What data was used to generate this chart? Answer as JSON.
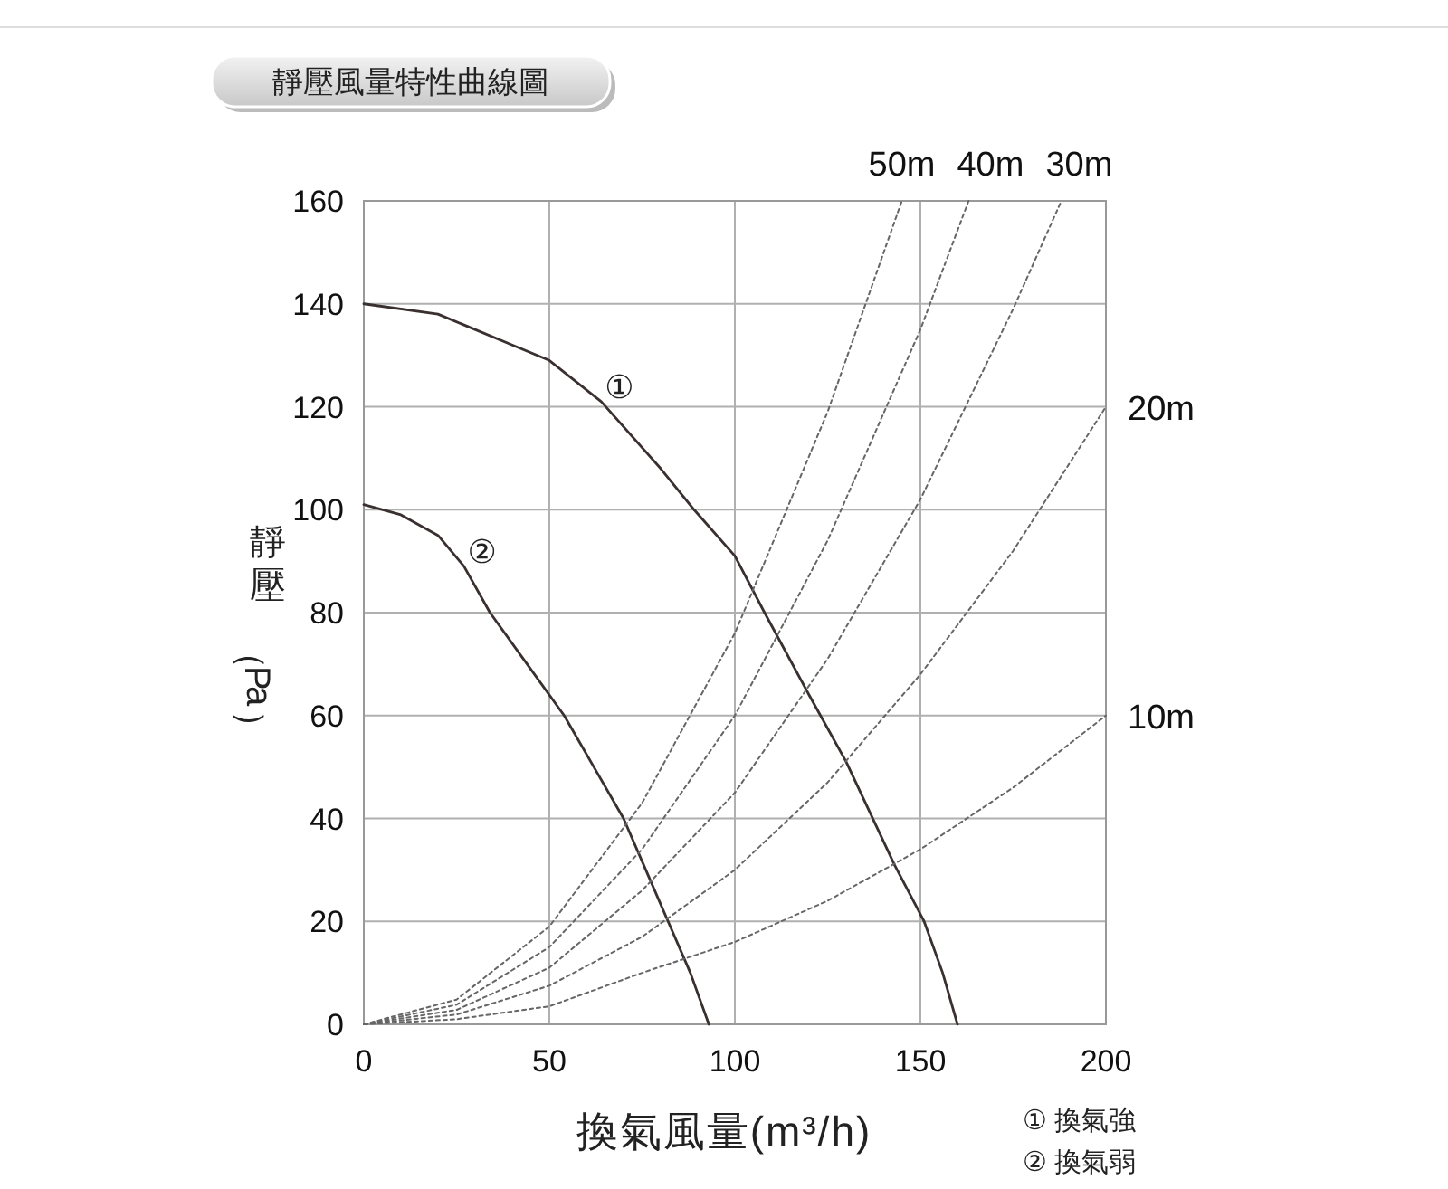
{
  "chart_data": {
    "type": "line",
    "title": "靜壓風量特性曲線圖",
    "xlabel": "換氣風量(m³/h)",
    "ylabel": "靜壓（Pa）",
    "xlim": [
      0,
      200
    ],
    "ylim": [
      0,
      160
    ],
    "xticks": [
      0,
      50,
      100,
      150,
      200
    ],
    "yticks": [
      0,
      20,
      40,
      60,
      80,
      100,
      120,
      140,
      160
    ],
    "grid": true,
    "series": [
      {
        "name": "①",
        "color": "#3a3030",
        "line_style": "solid",
        "x": [
          0,
          20,
          40,
          50,
          64,
          80,
          89,
          100,
          108,
          120,
          130,
          143,
          151,
          156,
          160
        ],
        "values": [
          140,
          138,
          132,
          129,
          121,
          108,
          100,
          91,
          80,
          64,
          51,
          31,
          20,
          10,
          0
        ]
      },
      {
        "name": "②",
        "color": "#3a3030",
        "line_style": "solid",
        "x": [
          0,
          10,
          20,
          27,
          34,
          44,
          54,
          62,
          70,
          76,
          82,
          88,
          93
        ],
        "values": [
          101,
          99,
          95,
          89,
          80,
          70,
          60,
          50,
          40,
          30,
          20,
          10,
          0
        ]
      },
      {
        "name": "50m",
        "color": "#666666",
        "line_style": "dotted",
        "x": [
          0,
          25,
          50,
          75,
          100,
          125,
          145
        ],
        "values": [
          0,
          4.8,
          19,
          43,
          76,
          119,
          160
        ]
      },
      {
        "name": "40m",
        "color": "#666666",
        "line_style": "dotted",
        "x": [
          0,
          25,
          50,
          75,
          100,
          125,
          150,
          163
        ],
        "values": [
          0,
          3.8,
          15,
          34,
          60,
          94,
          135,
          160
        ]
      },
      {
        "name": "30m",
        "color": "#666666",
        "line_style": "dotted",
        "x": [
          0,
          25,
          50,
          75,
          100,
          125,
          150,
          175,
          188
        ],
        "values": [
          0,
          2.8,
          11,
          26,
          45,
          71,
          102,
          139,
          160
        ]
      },
      {
        "name": "20m",
        "color": "#666666",
        "line_style": "dotted",
        "x": [
          0,
          25,
          50,
          75,
          100,
          125,
          150,
          175,
          200
        ],
        "values": [
          0,
          1.9,
          7.5,
          17,
          30,
          47,
          68,
          92,
          120
        ]
      },
      {
        "name": "10m",
        "color": "#666666",
        "line_style": "dotted",
        "x": [
          0,
          25,
          50,
          75,
          100,
          125,
          150,
          175,
          200
        ],
        "values": [
          0,
          1,
          3.5,
          10,
          16,
          24,
          34,
          46,
          60
        ]
      }
    ],
    "annotations": [
      "① 換氣強",
      "② 換氣弱"
    ]
  }
}
